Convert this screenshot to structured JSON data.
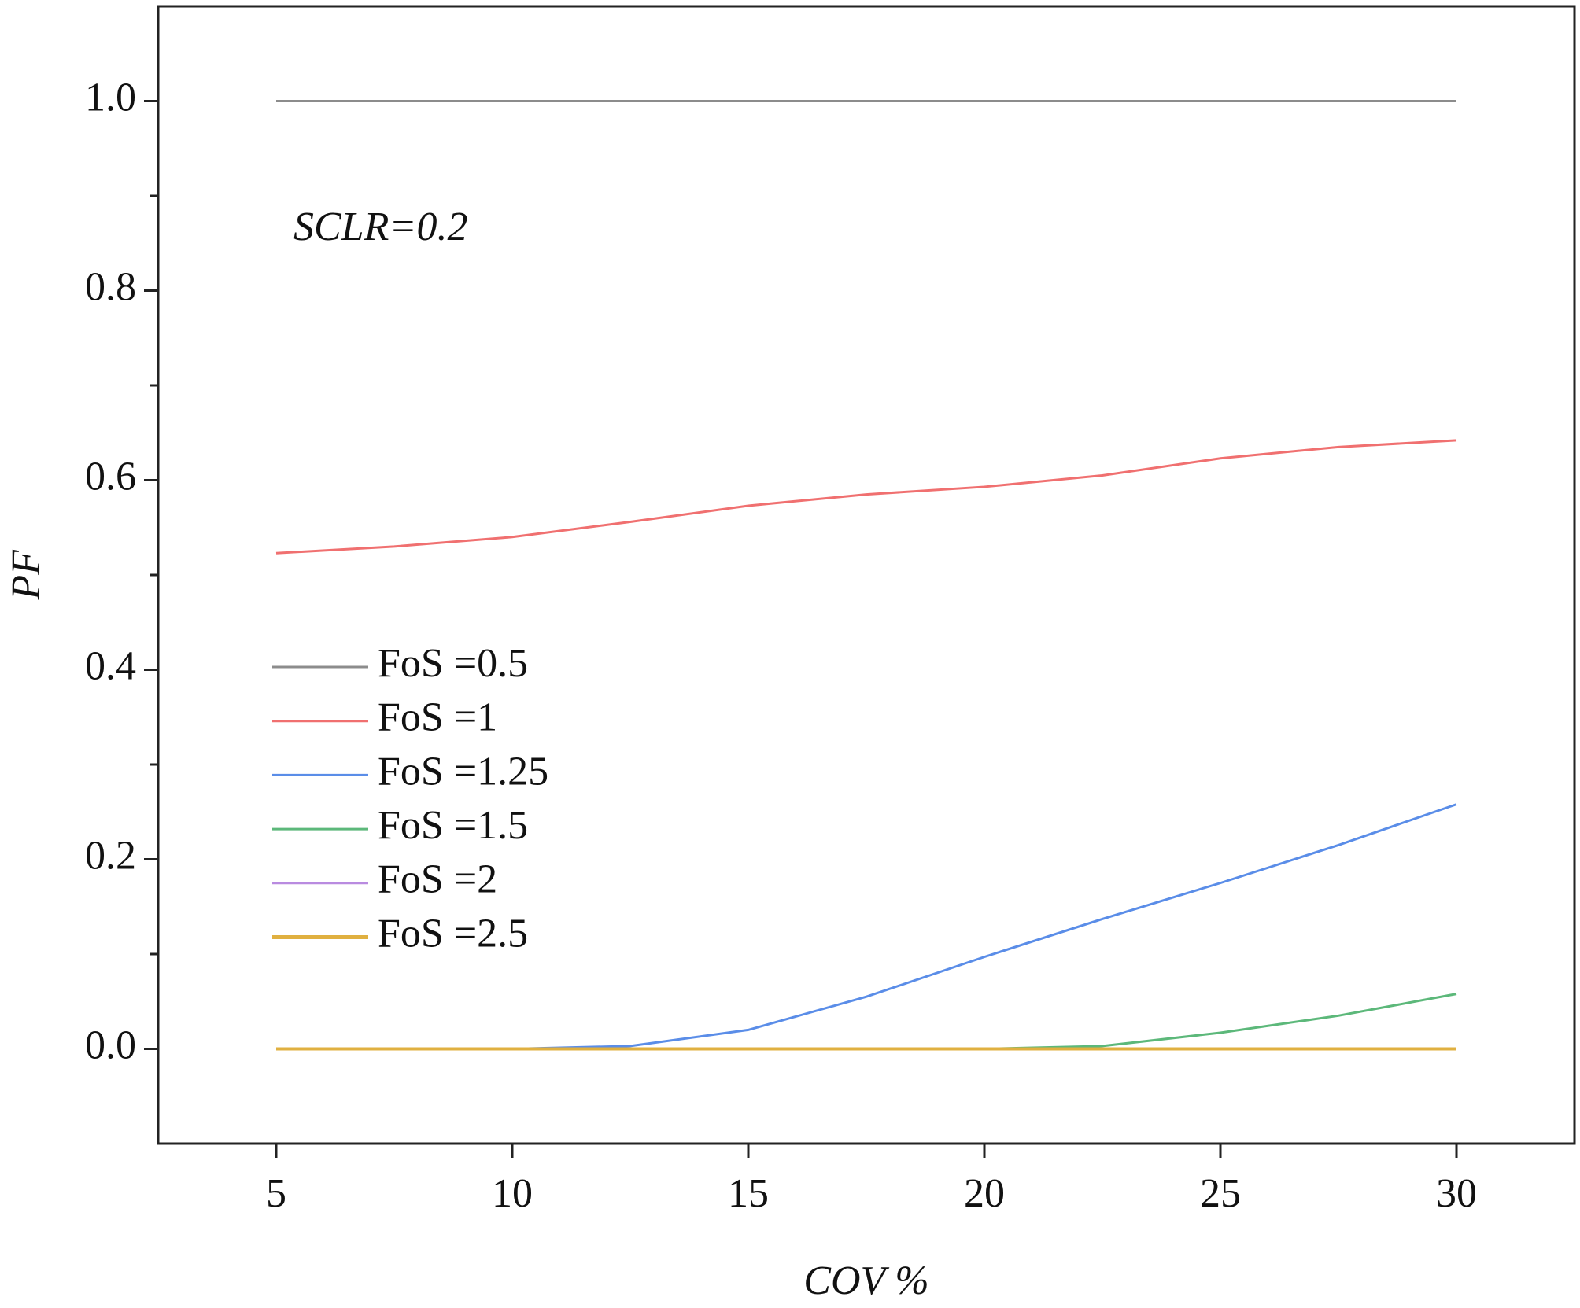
{
  "chart_data": {
    "type": "line",
    "x_label": "COV %",
    "y_label": "PF",
    "annotation": "SCLR=0.2",
    "x": [
      5,
      7.5,
      10,
      12.5,
      15,
      17.5,
      20,
      22.5,
      25,
      27.5,
      30
    ],
    "series": [
      {
        "name": "FoS =0.5",
        "color": "#8c8c8c",
        "values": [
          1,
          1,
          1,
          1,
          1,
          1,
          1,
          1,
          1,
          1,
          1
        ]
      },
      {
        "name": "FoS =1",
        "color": "#f07070",
        "values": [
          0.523,
          0.53,
          0.54,
          0.556,
          0.573,
          0.585,
          0.593,
          0.605,
          0.623,
          0.635,
          0.642
        ]
      },
      {
        "name": "FoS =1.25",
        "color": "#5a8de8",
        "values": [
          0,
          0,
          0,
          0.003,
          0.02,
          0.055,
          0.097,
          0.137,
          0.175,
          0.215,
          0.258
        ]
      },
      {
        "name": "FoS =1.5",
        "color": "#5cb87a",
        "values": [
          0,
          0,
          0,
          0,
          0,
          0,
          0,
          0.003,
          0.017,
          0.035,
          0.058
        ]
      },
      {
        "name": "FoS =2",
        "color": "#b98be0",
        "values": [
          0,
          0,
          0,
          0,
          0,
          0,
          0,
          0,
          0,
          0,
          0
        ]
      },
      {
        "name": "FoS =2.5",
        "color": "#e0b040",
        "values": [
          0,
          0,
          0,
          0,
          0,
          0,
          0,
          0,
          0,
          0,
          0
        ]
      }
    ],
    "xlim": [
      2.5,
      32.5
    ],
    "xticks": [
      5,
      10,
      15,
      20,
      25,
      30
    ],
    "ylim": [
      -0.1,
      1.1
    ],
    "yticks": [
      {
        "value": 0,
        "label": "0.0"
      },
      0.2,
      0.4,
      0.6,
      0.8,
      {
        "value": 1,
        "label": "1.0"
      }
    ],
    "yminorticks": [
      0.1,
      0.3,
      0.5,
      0.7,
      0.9
    ],
    "grid": false,
    "legend": "left"
  }
}
